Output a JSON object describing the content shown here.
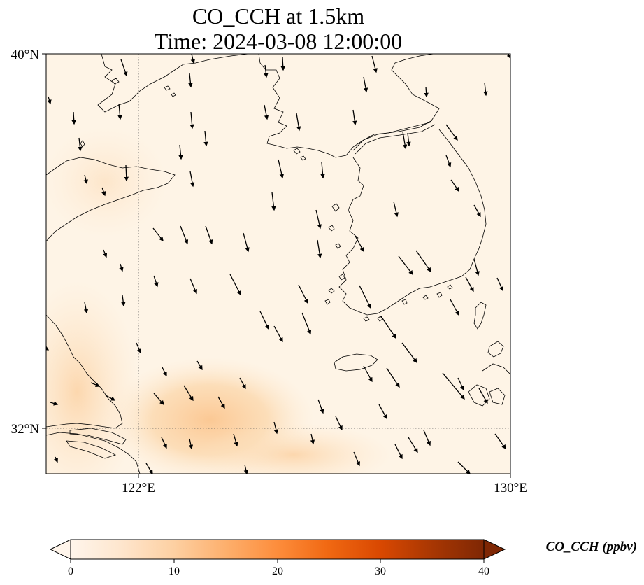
{
  "title": {
    "line1": "CO_CCH at 1.5km",
    "line2": "Time: 2024-03-08 12:00:00"
  },
  "map": {
    "lon_range": [
      120,
      130
    ],
    "lat_range": [
      31,
      40
    ],
    "lat_labels": [
      "40°N",
      "32°N"
    ],
    "lon_labels": [
      "122°E",
      "130°E"
    ],
    "gridlines": {
      "lon": [
        122
      ],
      "lat": [
        32
      ],
      "style": "dotted"
    },
    "field_colors": {
      "background": "#fef4e6",
      "low": "#fdebd3",
      "plume": "#fbc690"
    }
  },
  "colorbar": {
    "label": "CO_CCH (ppbv)",
    "ticks": [
      "0",
      "10",
      "20",
      "30",
      "40"
    ],
    "range": [
      0,
      40
    ],
    "extend": "both",
    "colormap": [
      "#fff5eb",
      "#fee6ce",
      "#fdd0a2",
      "#fdae6b",
      "#fd8d3c",
      "#f16913",
      "#d94801",
      "#a63603",
      "#7f2704"
    ]
  },
  "icons": {
    "wind_vectors": "arrow-icon"
  }
}
